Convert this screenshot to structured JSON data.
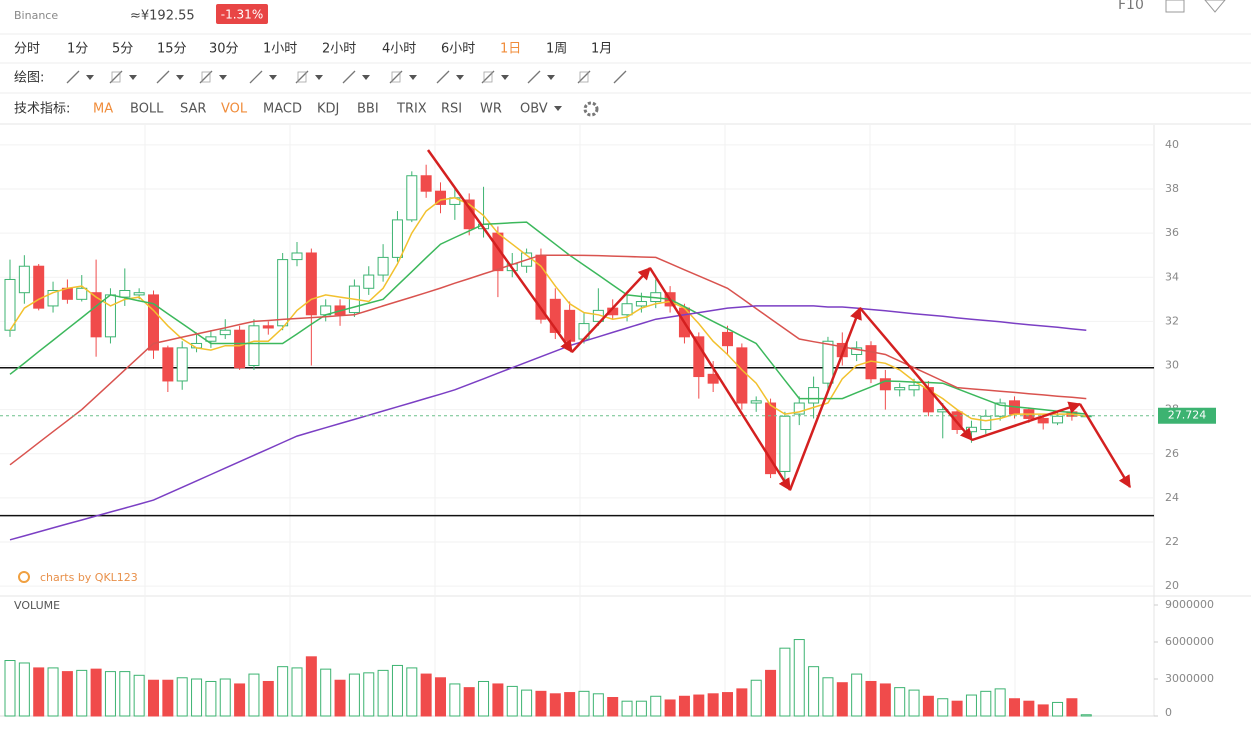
{
  "header": {
    "exchange": "Binance",
    "cny": "≈¥192.55",
    "change": "-1.31%",
    "f10": "F10"
  },
  "toolbar": {
    "timeframes": [
      "分时",
      "1分",
      "5分",
      "15分",
      "30分",
      "1小时",
      "2小时",
      "4小时",
      "6小时",
      "1日",
      "1周",
      "1月"
    ],
    "active_timeframe": 9,
    "drawing_label": "绘图:",
    "indicator_label": "技术指标:",
    "indicators": [
      "MA",
      "BOLL",
      "SAR",
      "VOL",
      "MACD",
      "KDJ",
      "BBI",
      "TRIX",
      "RSI",
      "WR",
      "OBV"
    ],
    "active_indicators": [
      0,
      3
    ]
  },
  "watermark": "charts by QKL123",
  "chart_data": [
    {
      "type": "candlestick",
      "up_color": "#3cb371",
      "down_color": "#f04b4b",
      "open": [
        31.6,
        33.3,
        34.5,
        32.7,
        33.5,
        33.0,
        33.3,
        31.3,
        33.1,
        33.2,
        33.2,
        30.8,
        29.3,
        30.8,
        31.1,
        31.4,
        31.6,
        30.0,
        31.8,
        31.8,
        34.8,
        35.1,
        32.3,
        32.7,
        32.4,
        33.5,
        34.1,
        34.9,
        36.6,
        38.6,
        37.9,
        37.3,
        37.5,
        36.2,
        36.0,
        34.3,
        34.5,
        35.0,
        33.0,
        32.5,
        31.2,
        32.0,
        32.6,
        32.3,
        32.7,
        32.9,
        33.3,
        32.6,
        31.3,
        29.6,
        31.5,
        30.8,
        28.3,
        28.3,
        25.2,
        27.8,
        28.3,
        29.2,
        31.0,
        30.5,
        30.9,
        29.4,
        28.9,
        28.9,
        29.0,
        27.9,
        27.9,
        27.0,
        27.1,
        27.7,
        28.4,
        28.0,
        27.6,
        27.4,
        27.9,
        27.7
      ],
      "high": [
        34.8,
        35.0,
        34.6,
        33.8,
        33.9,
        34.1,
        34.8,
        33.5,
        34.4,
        33.5,
        33.4,
        30.9,
        31.1,
        31.5,
        31.6,
        32.1,
        31.8,
        32.1,
        32.0,
        35.1,
        35.6,
        35.3,
        33.0,
        33.0,
        33.9,
        34.5,
        35.5,
        37.0,
        38.8,
        39.1,
        38.3,
        38.0,
        37.8,
        38.1,
        36.3,
        35.1,
        35.3,
        35.3,
        33.5,
        32.9,
        32.4,
        33.5,
        33.0,
        33.2,
        33.3,
        33.9,
        33.6,
        32.8,
        31.5,
        30.2,
        31.8,
        31.0,
        28.6,
        28.5,
        27.9,
        28.6,
        29.5,
        31.3,
        31.5,
        31.1,
        31.1,
        29.8,
        29.2,
        29.4,
        29.3,
        28.3,
        28.0,
        27.5,
        28.0,
        28.5,
        28.6,
        28.1,
        27.8,
        27.9,
        28.1,
        27.75
      ],
      "low": [
        31.3,
        32.8,
        32.5,
        32.4,
        32.8,
        32.9,
        30.4,
        31.0,
        32.7,
        33.0,
        30.3,
        28.8,
        28.9,
        30.6,
        30.8,
        31.2,
        29.8,
        29.8,
        31.4,
        31.6,
        34.5,
        30.0,
        32.0,
        31.8,
        32.2,
        33.2,
        33.8,
        34.7,
        36.5,
        37.6,
        36.9,
        36.6,
        35.9,
        35.8,
        33.1,
        34.0,
        34.2,
        31.9,
        31.2,
        30.8,
        31.0,
        31.8,
        32.1,
        32.0,
        32.4,
        32.6,
        32.4,
        31.0,
        28.5,
        28.8,
        30.5,
        28.0,
        27.9,
        24.9,
        24.8,
        27.3,
        27.6,
        28.8,
        30.0,
        30.2,
        29.2,
        28.0,
        28.6,
        28.6,
        27.7,
        26.7,
        26.9,
        26.5,
        26.9,
        27.5,
        27.6,
        27.4,
        27.1,
        27.3,
        27.5,
        27.68
      ],
      "close": [
        33.9,
        34.5,
        32.6,
        33.4,
        33.0,
        33.5,
        31.3,
        33.2,
        33.4,
        33.3,
        30.7,
        29.3,
        30.8,
        31.0,
        31.3,
        31.6,
        29.9,
        31.8,
        31.7,
        34.8,
        35.1,
        32.3,
        32.7,
        32.3,
        33.6,
        34.1,
        34.9,
        36.6,
        38.6,
        37.9,
        37.3,
        37.6,
        36.2,
        36.4,
        34.3,
        34.6,
        35.1,
        32.1,
        31.5,
        31.1,
        31.9,
        32.5,
        32.3,
        32.8,
        32.9,
        33.3,
        32.7,
        31.3,
        29.5,
        29.2,
        30.9,
        28.3,
        28.4,
        25.1,
        27.7,
        28.3,
        29.0,
        31.1,
        30.4,
        30.8,
        29.4,
        28.9,
        29.0,
        29.1,
        27.9,
        28.0,
        27.1,
        27.2,
        27.7,
        28.3,
        27.8,
        27.6,
        27.4,
        27.7,
        27.7,
        27.724
      ],
      "series": [
        {
          "color": "#f2c12e",
          "values": [
            31.6,
            32.6,
            33.0,
            33.3,
            33.5,
            33.6,
            33.1,
            32.7,
            33.0,
            33.1,
            32.5,
            31.8,
            31.2,
            30.8,
            30.7,
            30.9,
            30.9,
            31.1,
            31.1,
            31.7,
            32.5,
            33.0,
            33.2,
            33.1,
            33.0,
            32.9,
            33.5,
            34.6,
            36.0,
            37.0,
            37.5,
            37.6,
            37.3,
            36.8,
            36.0,
            35.5,
            35.0,
            34.5,
            33.6,
            32.8,
            32.4,
            32.3,
            32.1,
            32.2,
            32.6,
            32.8,
            32.9,
            32.6,
            31.9,
            31.1,
            30.5,
            29.8,
            29.2,
            28.2,
            27.8,
            27.9,
            28.1,
            28.3,
            29.4,
            30.0,
            30.2,
            30.1,
            29.8,
            29.3,
            28.9,
            28.5,
            28.0,
            27.6,
            27.5,
            27.6,
            27.8,
            27.8,
            27.8,
            27.8,
            27.8,
            27.7
          ]
        },
        {
          "color": "#3cb85c",
          "values": [
            29.6,
            30.11,
            30.63,
            31.14,
            31.66,
            32.17,
            32.69,
            33.2,
            33.07,
            32.93,
            32.8,
            32.35,
            31.9,
            31.45,
            31.0,
            31.0,
            31.0,
            31.0,
            31.0,
            31.0,
            31.43,
            31.87,
            32.3,
            32.48,
            32.65,
            32.83,
            33.0,
            33.63,
            34.25,
            34.88,
            35.5,
            35.8,
            36.1,
            36.4,
            36.43,
            36.47,
            36.5,
            36.0,
            35.5,
            35.0,
            34.55,
            34.1,
            33.65,
            33.2,
            33.13,
            33.07,
            33.0,
            32.67,
            32.33,
            32.0,
            31.67,
            31.33,
            31.0,
            30.17,
            29.33,
            28.5,
            28.5,
            28.5,
            28.5,
            28.77,
            29.03,
            29.3,
            29.28,
            29.25,
            29.23,
            29.2,
            28.95,
            28.7,
            28.45,
            28.2,
            28.13,
            28.07,
            28.0,
            27.93,
            27.87,
            27.8
          ]
        },
        {
          "color": "#d9534f",
          "values": [
            25.5,
            26.0,
            26.5,
            27.0,
            27.5,
            28.0,
            28.6,
            29.2,
            29.8,
            30.4,
            31.0,
            31.14,
            31.29,
            31.43,
            31.57,
            31.71,
            31.86,
            32.0,
            32.04,
            32.09,
            32.13,
            32.17,
            32.21,
            32.26,
            32.3,
            32.5,
            32.7,
            32.9,
            33.1,
            33.3,
            33.51,
            33.73,
            33.94,
            34.15,
            34.36,
            34.58,
            34.79,
            35.0,
            35.0,
            35.0,
            34.99,
            34.98,
            34.96,
            34.94,
            34.92,
            34.9,
            34.62,
            34.34,
            34.06,
            33.78,
            33.5,
            33.04,
            32.58,
            32.12,
            31.66,
            31.2,
            31.08,
            30.97,
            30.85,
            30.73,
            30.62,
            30.5,
            30.2,
            29.9,
            29.6,
            29.3,
            29.0,
            28.94,
            28.89,
            28.83,
            28.78,
            28.72,
            28.67,
            28.61,
            28.56,
            28.5
          ]
        },
        {
          "color": "#7b3fc4",
          "values": [
            22.1,
            22.28,
            22.46,
            22.64,
            22.82,
            23.0,
            23.18,
            23.36,
            23.54,
            23.72,
            23.9,
            24.19,
            24.48,
            24.77,
            25.06,
            25.35,
            25.64,
            25.93,
            26.22,
            26.51,
            26.8,
            26.99,
            27.18,
            27.37,
            27.56,
            27.75,
            27.94,
            28.13,
            28.32,
            28.51,
            28.7,
            28.9,
            29.15,
            29.4,
            29.65,
            29.9,
            30.15,
            30.4,
            30.65,
            30.9,
            31.1,
            31.3,
            31.5,
            31.7,
            31.9,
            32.1,
            32.2,
            32.3,
            32.4,
            32.5,
            32.6,
            32.65,
            32.7,
            32.7,
            32.7,
            32.7,
            32.7,
            32.65,
            32.65,
            32.6,
            32.54,
            32.48,
            32.41,
            32.35,
            32.29,
            32.23,
            32.16,
            32.1,
            32.04,
            31.98,
            31.91,
            31.85,
            31.79,
            31.73,
            31.66,
            31.6
          ]
        }
      ],
      "hlines": [
        29.9,
        23.2
      ],
      "last_price": 27.724,
      "ylim": [
        19.6,
        40.9
      ],
      "yticks": [
        20,
        22,
        24,
        26,
        28,
        30,
        32,
        34,
        36,
        38,
        40
      ],
      "grid": true
    },
    {
      "type": "bar",
      "title": "VOLUME",
      "values": [
        4500000,
        4300000,
        3900000,
        3900000,
        3600000,
        3700000,
        3800000,
        3600000,
        3600000,
        3300000,
        2900000,
        2900000,
        3100000,
        3000000,
        2800000,
        3000000,
        2600000,
        3400000,
        2800000,
        4000000,
        3900000,
        4800000,
        3800000,
        2900000,
        3400000,
        3500000,
        3700000,
        4100000,
        3900000,
        3400000,
        3100000,
        2600000,
        2300000,
        2800000,
        2600000,
        2400000,
        2100000,
        2000000,
        1800000,
        1900000,
        2000000,
        1800000,
        1500000,
        1200000,
        1200000,
        1600000,
        1300000,
        1600000,
        1700000,
        1800000,
        1900000,
        2200000,
        2900000,
        3700000,
        5500000,
        6200000,
        4000000,
        3100000,
        2700000,
        3400000,
        2800000,
        2600000,
        2300000,
        2100000,
        1600000,
        1400000,
        1200000,
        1700000,
        2000000,
        2200000,
        1400000,
        1200000,
        900000,
        1100000,
        1400000,
        100000
      ],
      "ylim": [
        0,
        9650000
      ],
      "yticks": [
        0,
        3000000,
        6000000,
        9000000
      ]
    }
  ]
}
